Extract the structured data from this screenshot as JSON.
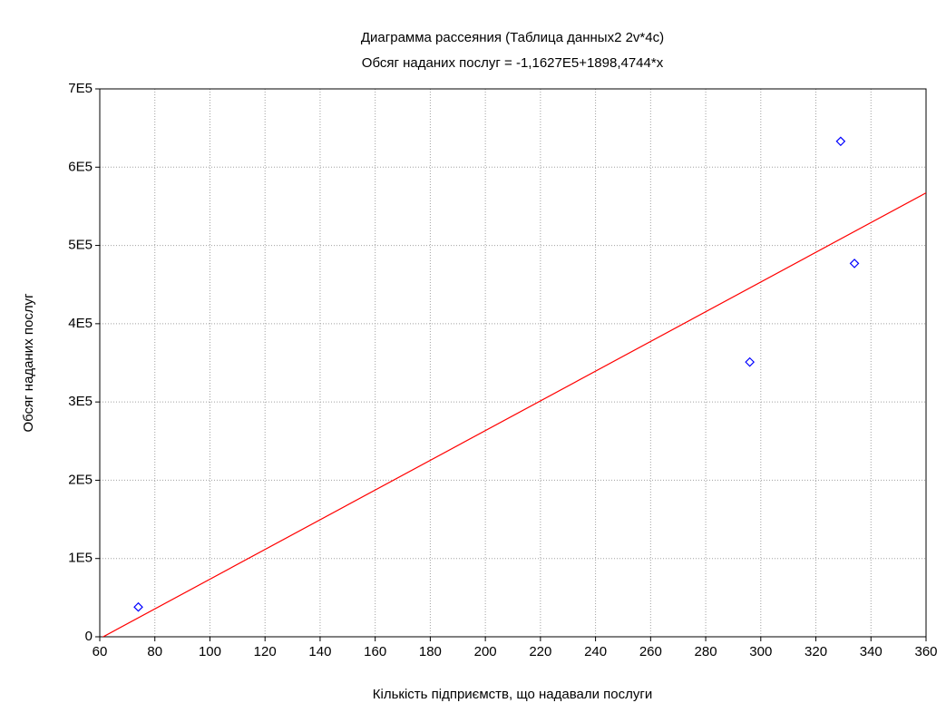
{
  "chart_data": {
    "type": "scatter",
    "title": "Диаграмма рассеяния (Таблица данных2 2v*4c)",
    "subtitle": "Обсяг наданих послуг = -1,1627E5+1898,4744*x",
    "x_label": "Кількість підприємств, що надавали послуги",
    "y_label": "Обсяг наданих послуг",
    "x": [
      74,
      296,
      329,
      334
    ],
    "values": [
      38000,
      351000,
      633000,
      477000
    ],
    "color": "#0000ff",
    "trendline": {
      "intercept": -116270,
      "slope": 1898.4744,
      "color": "#ff0000"
    },
    "xlim": [
      60,
      360
    ],
    "xticks": [
      60,
      80,
      100,
      120,
      140,
      160,
      180,
      200,
      220,
      240,
      260,
      280,
      300,
      320,
      340,
      360
    ],
    "ylim": [
      0,
      700000
    ],
    "yticks": [
      0,
      {
        "value": 100000,
        "label": "1E5"
      },
      {
        "value": 200000,
        "label": "2E5"
      },
      {
        "value": 300000,
        "label": "3E5"
      },
      {
        "value": 400000,
        "label": "4E5"
      },
      {
        "value": 500000,
        "label": "5E5"
      },
      {
        "value": 600000,
        "label": "6E5"
      },
      {
        "value": 700000,
        "label": "7E5"
      }
    ],
    "grid": true
  }
}
